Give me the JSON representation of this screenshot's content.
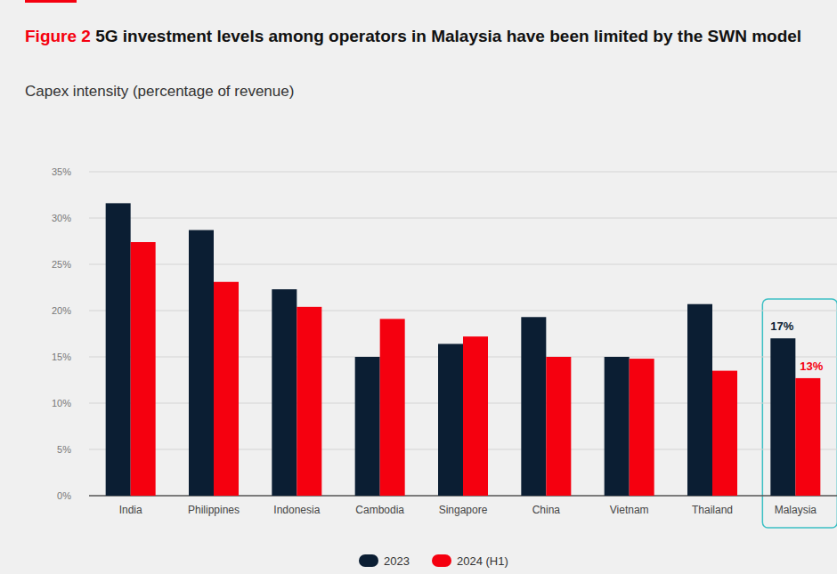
{
  "chart_data": {
    "type": "bar",
    "figure_label": "Figure 2",
    "title": "5G investment levels among operators in Malaysia have been limited by the SWN model",
    "subtitle": "Capex intensity (percentage of revenue)",
    "categories": [
      "India",
      "Philippines",
      "Indonesia",
      "Cambodia",
      "Singapore",
      "China",
      "Vietnam",
      "Thailand",
      "Malaysia"
    ],
    "series": [
      {
        "name": "2023",
        "color": "#0b1e33",
        "values": [
          31.6,
          28.7,
          22.3,
          15.0,
          16.4,
          19.3,
          15.0,
          20.7,
          17
        ],
        "value_labels": [
          null,
          null,
          null,
          null,
          null,
          null,
          null,
          null,
          "17%"
        ]
      },
      {
        "name": "2024 (H1)",
        "color": "#f5000f",
        "values": [
          27.4,
          23.1,
          20.4,
          19.1,
          17.2,
          15.0,
          14.8,
          13.5,
          12.7
        ],
        "value_labels": [
          null,
          null,
          null,
          null,
          null,
          null,
          null,
          null,
          "13%"
        ]
      }
    ],
    "ylim": [
      0,
      35
    ],
    "yticks": [
      {
        "value": 0,
        "label": "0%"
      },
      {
        "value": 5,
        "label": "5%"
      },
      {
        "value": 10,
        "label": "10%"
      },
      {
        "value": 15,
        "label": "15%"
      },
      {
        "value": 20,
        "label": "20%"
      },
      {
        "value": 25,
        "label": "25%"
      },
      {
        "value": 30,
        "label": "30%"
      },
      {
        "value": 35,
        "label": "35%"
      }
    ],
    "grid": true,
    "data_labels": true,
    "legend": "bottom"
  }
}
